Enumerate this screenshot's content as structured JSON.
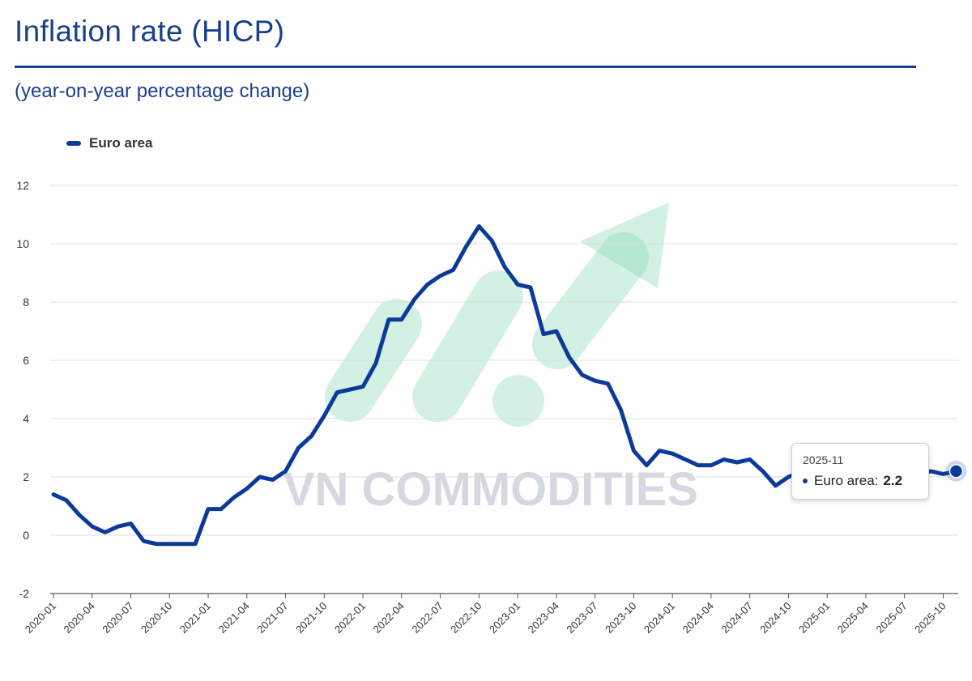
{
  "header": {
    "title": "Inflation rate (HICP)",
    "subtitle": "(year-on-year percentage change)"
  },
  "legend": {
    "label": "Euro area",
    "color": "#0b3a9b"
  },
  "tooltip": {
    "date": "2025-11",
    "series": "Euro area:",
    "value": "2.2"
  },
  "watermark": {
    "text": "VN COMMODITIES"
  },
  "chart_data": {
    "type": "line",
    "title": "Inflation rate (HICP)",
    "subtitle": "(year-on-year percentage change)",
    "ylim": [
      -2,
      12
    ],
    "yticks": [
      -2,
      0,
      2,
      4,
      6,
      8,
      10,
      12
    ],
    "xtick_labels": [
      "2020-01",
      "2020-04",
      "2020-07",
      "2020-10",
      "2021-01",
      "2021-04",
      "2021-07",
      "2021-10",
      "2022-01",
      "2022-04",
      "2022-07",
      "2022-10",
      "2023-01",
      "2023-04",
      "2023-07",
      "2023-10",
      "2024-01",
      "2024-04",
      "2024-07",
      "2024-10",
      "2025-01",
      "2025-04",
      "2025-07",
      "2025-10"
    ],
    "grid": true,
    "legend_position": "top-left",
    "series": [
      {
        "name": "Euro area",
        "color": "#0b3a9b",
        "x": [
          "2020-01",
          "2020-02",
          "2020-03",
          "2020-04",
          "2020-05",
          "2020-06",
          "2020-07",
          "2020-08",
          "2020-09",
          "2020-10",
          "2020-11",
          "2020-12",
          "2021-01",
          "2021-02",
          "2021-03",
          "2021-04",
          "2021-05",
          "2021-06",
          "2021-07",
          "2021-08",
          "2021-09",
          "2021-10",
          "2021-11",
          "2021-12",
          "2022-01",
          "2022-02",
          "2022-03",
          "2022-04",
          "2022-05",
          "2022-06",
          "2022-07",
          "2022-08",
          "2022-09",
          "2022-10",
          "2022-11",
          "2022-12",
          "2023-01",
          "2023-02",
          "2023-03",
          "2023-04",
          "2023-05",
          "2023-06",
          "2023-07",
          "2023-08",
          "2023-09",
          "2023-10",
          "2023-11",
          "2023-12",
          "2024-01",
          "2024-02",
          "2024-03",
          "2024-04",
          "2024-05",
          "2024-06",
          "2024-07",
          "2024-08",
          "2024-09",
          "2024-10",
          "2024-11",
          "2024-12",
          "2025-01",
          "2025-02",
          "2025-03",
          "2025-04",
          "2025-05",
          "2025-06",
          "2025-07",
          "2025-08",
          "2025-09",
          "2025-10",
          "2025-11"
        ],
        "values": [
          1.4,
          1.2,
          0.7,
          0.3,
          0.1,
          0.3,
          0.4,
          -0.2,
          -0.3,
          -0.3,
          -0.3,
          -0.3,
          0.9,
          0.9,
          1.3,
          1.6,
          2.0,
          1.9,
          2.2,
          3.0,
          3.4,
          4.1,
          4.9,
          5.0,
          5.1,
          5.9,
          7.4,
          7.4,
          8.1,
          8.6,
          8.9,
          9.1,
          9.9,
          10.6,
          10.1,
          9.2,
          8.6,
          8.5,
          6.9,
          7.0,
          6.1,
          5.5,
          5.3,
          5.2,
          4.3,
          2.9,
          2.4,
          2.9,
          2.8,
          2.6,
          2.4,
          2.4,
          2.6,
          2.5,
          2.6,
          2.2,
          1.7,
          2.0,
          2.2,
          2.4,
          2.5,
          2.3,
          2.2,
          2.2,
          1.9,
          2.0,
          2.0,
          2.0,
          2.2,
          2.1,
          2.2
        ]
      }
    ]
  }
}
